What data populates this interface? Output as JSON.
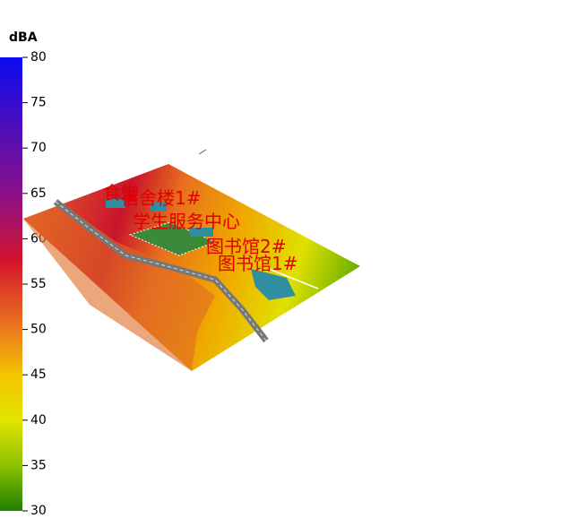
{
  "colorbar": {
    "unit": "dBA",
    "range": [
      30,
      80
    ],
    "ticks": [
      30,
      35,
      40,
      45,
      50,
      55,
      60,
      65,
      70,
      75,
      80
    ]
  },
  "labels": [
    "食堂",
    "宿舍楼1#",
    "学生服务中心",
    "图书馆2#",
    "图书馆1#"
  ]
}
